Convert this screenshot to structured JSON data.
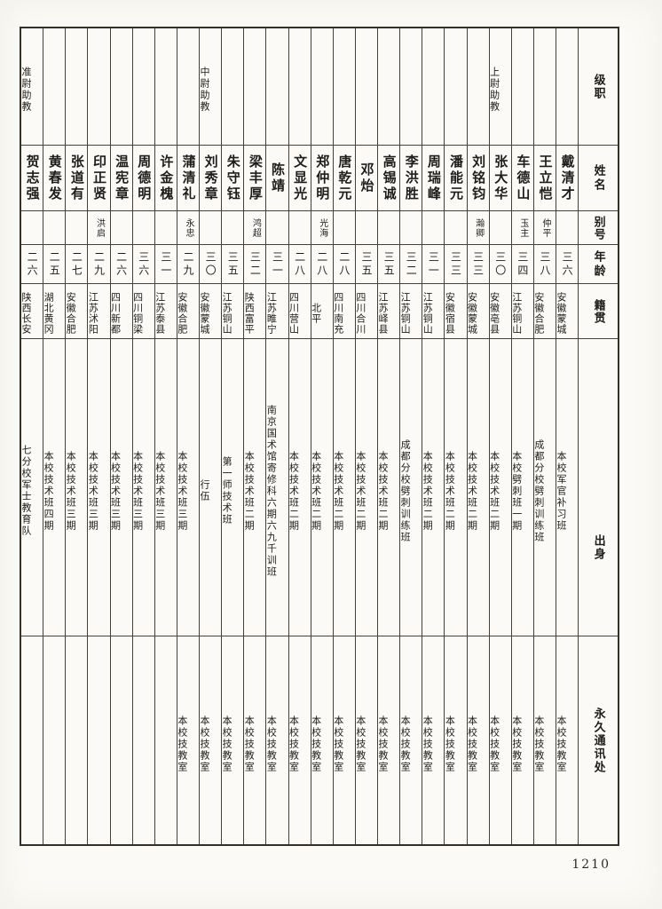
{
  "page_number": "1210",
  "colors": {
    "paper": "#fbfaf6",
    "ink": "#1f1d19",
    "grid_line": "#45413a"
  },
  "table": {
    "headers": {
      "rank": "级职",
      "name": "姓名",
      "alias": "别号",
      "age": "年龄",
      "native_place": "籍贯",
      "origin": "出身",
      "contact": "永久通讯处"
    },
    "reading_order": "right-to-left",
    "people": [
      {
        "rank": "",
        "name": "戴清才",
        "alias": "",
        "age": "三六",
        "native_place": "安徽蒙城",
        "origin": "本校军官补习班",
        "contact": "本校技教室"
      },
      {
        "rank": "",
        "name": "王立恺",
        "alias": "仲平",
        "age": "三八",
        "native_place": "安徽合肥",
        "origin": "成都分校劈刺训练班",
        "contact": "本校技教室"
      },
      {
        "rank": "",
        "name": "车德山",
        "alias": "玉主",
        "age": "三四",
        "native_place": "江苏铜山",
        "origin": "本校劈刺班一期",
        "contact": "本校技教室"
      },
      {
        "rank": "上尉助教",
        "name": "张大华",
        "alias": "",
        "age": "三〇",
        "native_place": "安徽亳县",
        "origin": "本校技术班二期",
        "contact": "本校技教室"
      },
      {
        "rank": "",
        "name": "刘铭钧",
        "alias": "瀚卿",
        "age": "三三",
        "native_place": "安徽蒙城",
        "origin": "本校技术班二期",
        "contact": "本校技教室"
      },
      {
        "rank": "",
        "name": "潘能元",
        "alias": "",
        "age": "三三",
        "native_place": "安徽宿县",
        "origin": "本校技术班二期",
        "contact": "本校技教室"
      },
      {
        "rank": "",
        "name": "周瑞峰",
        "alias": "",
        "age": "三一",
        "native_place": "江苏铜山",
        "origin": "本校技术班二期",
        "contact": "本校技教室"
      },
      {
        "rank": "",
        "name": "李洪胜",
        "alias": "",
        "age": "三二",
        "native_place": "江苏铜山",
        "origin": "成都分校劈刺训练班",
        "contact": "本校技教室"
      },
      {
        "rank": "",
        "name": "高锡诚",
        "alias": "",
        "age": "三五",
        "native_place": "江苏峄县",
        "origin": "本校技术班二期",
        "contact": "本校技教室"
      },
      {
        "rank": "",
        "name": "邓炲",
        "alias": "",
        "age": "三五",
        "native_place": "四川合川",
        "origin": "本校技术班二期",
        "contact": "本校技教室"
      },
      {
        "rank": "",
        "name": "唐乾元",
        "alias": "",
        "age": "二八",
        "native_place": "四川南充",
        "origin": "本校技术班二期",
        "contact": "本校技教室"
      },
      {
        "rank": "",
        "name": "郑仲明",
        "alias": "光海",
        "age": "二八",
        "native_place": "北平",
        "origin": "本校技术班二期",
        "contact": "本校技教室"
      },
      {
        "rank": "",
        "name": "文显光",
        "alias": "",
        "age": "二八",
        "native_place": "四川营山",
        "origin": "本校技术班二期",
        "contact": "本校技教室"
      },
      {
        "rank": "",
        "name": "陈靖",
        "alias": "",
        "age": "三一",
        "native_place": "江苏睢宁",
        "origin": "南京国术馆寄修科六期六九千训班",
        "contact": "本校技教室"
      },
      {
        "rank": "",
        "name": "梁丰厚",
        "alias": "鸿超",
        "age": "三二",
        "native_place": "陕西富平",
        "origin": "本校技术班二期",
        "contact": "本校技教室"
      },
      {
        "rank": "",
        "name": "朱守钰",
        "alias": "",
        "age": "三五",
        "native_place": "江苏铜山",
        "origin": "第一师技术班",
        "contact": "本校技教室"
      },
      {
        "rank": "中尉助教",
        "name": "刘秀章",
        "alias": "",
        "age": "三〇",
        "native_place": "安徽蒙城",
        "origin": "行伍",
        "contact": "本校技教室"
      },
      {
        "rank": "",
        "name": "蒲清礼",
        "alias": "永忠",
        "age": "二九",
        "native_place": "安徽合肥",
        "origin": "本校技术班三期",
        "contact": "本校技教室"
      },
      {
        "rank": "",
        "name": "许金槐",
        "alias": "",
        "age": "三一",
        "native_place": "江苏泰县",
        "origin": "本校技术班三期",
        "contact": ""
      },
      {
        "rank": "",
        "name": "周德明",
        "alias": "",
        "age": "三六",
        "native_place": "四川铜梁",
        "origin": "本校技术班三期",
        "contact": ""
      },
      {
        "rank": "",
        "name": "温宪章",
        "alias": "",
        "age": "二六",
        "native_place": "四川新都",
        "origin": "本校技术班三期",
        "contact": ""
      },
      {
        "rank": "",
        "name": "印正贤",
        "alias": "洪启",
        "age": "二九",
        "native_place": "江苏沭阳",
        "origin": "本校技术班三期",
        "contact": ""
      },
      {
        "rank": "",
        "name": "张道有",
        "alias": "",
        "age": "二七",
        "native_place": "安徽合肥",
        "origin": "本校技术班三期",
        "contact": ""
      },
      {
        "rank": "",
        "name": "黄春发",
        "alias": "",
        "age": "二五",
        "native_place": "湖北黄冈",
        "origin": "本校技术班四期",
        "contact": ""
      },
      {
        "rank": "准尉助教",
        "name": "贺志强",
        "alias": "",
        "age": "二六",
        "native_place": "陕西长安",
        "origin": "七分校军士教育队",
        "contact": ""
      }
    ]
  }
}
